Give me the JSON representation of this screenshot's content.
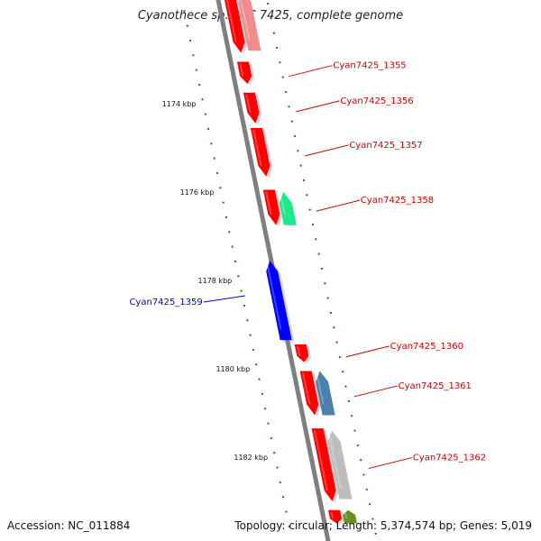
{
  "title": "Cyanothece sp. PCC 7425, complete genome",
  "footer": {
    "accession": "Accession: NC_011884",
    "summary": "Topology: circular; Length: 5,374,574 bp; Genes: 5,019"
  },
  "colors": {
    "forward_gene": "#ff0000",
    "reverse_gene": "#0000ff",
    "backbone": "#7f7f7f",
    "tick": "#1e7a1e",
    "label_forward": "#cc0000",
    "label_reverse": "#0000cc"
  },
  "scale_labels": [
    {
      "label": "1174 kbp",
      "kbp": 1174
    },
    {
      "label": "1176 kbp",
      "kbp": 1176
    },
    {
      "label": "1178 kbp",
      "kbp": 1178
    },
    {
      "label": "1180 kbp",
      "kbp": 1180
    },
    {
      "label": "1182 kbp",
      "kbp": 1182
    }
  ],
  "genes": [
    {
      "name": "",
      "strand": "reverse",
      "start": 1171.1,
      "end": 1171.2,
      "color": "#0000ff"
    },
    {
      "name": "",
      "strand": "forward",
      "start": 1171.45,
      "end": 1172.85,
      "color": "#ff0000"
    },
    {
      "name": "Cyan7425_1355",
      "strand": "forward",
      "start": 1173.05,
      "end": 1173.55,
      "color": "#ff0000"
    },
    {
      "name": "Cyan7425_1356",
      "strand": "forward",
      "start": 1173.75,
      "end": 1174.45,
      "color": "#ff0000"
    },
    {
      "name": "Cyan7425_1357",
      "strand": "forward",
      "start": 1174.55,
      "end": 1175.65,
      "color": "#ff0000"
    },
    {
      "name": "Cyan7425_1358",
      "strand": "forward",
      "start": 1175.95,
      "end": 1176.75,
      "color": "#ff0000"
    },
    {
      "name": "Cyan7425_1359",
      "strand": "reverse",
      "start": 1177.55,
      "end": 1179.35,
      "color": "#0000ff"
    },
    {
      "name": "Cyan7425_1360",
      "strand": "forward",
      "start": 1179.45,
      "end": 1179.85,
      "color": "#ff0000"
    },
    {
      "name": "Cyan7425_1361",
      "strand": "forward",
      "start": 1180.05,
      "end": 1181.05,
      "color": "#ff0000"
    },
    {
      "name": "Cyan7425_1362",
      "strand": "forward",
      "start": 1181.35,
      "end": 1183.0,
      "color": "#ff0000"
    },
    {
      "name": "",
      "strand": "forward",
      "start": 1183.2,
      "end": 1183.5,
      "color": "#ff0000"
    }
  ],
  "features": [
    {
      "strand": "reverse",
      "start": 1171.1,
      "end": 1171.15,
      "color": "#29a8e0"
    },
    {
      "strand": "forward",
      "start": 1171.45,
      "end": 1172.8,
      "color": "#f08c8c"
    },
    {
      "strand": "forward",
      "start": 1176.0,
      "end": 1176.75,
      "color": "#1ee88c"
    },
    {
      "strand": "forward",
      "start": 1180.05,
      "end": 1181.05,
      "color": "#4a7fb0"
    },
    {
      "strand": "forward",
      "start": 1181.4,
      "end": 1182.95,
      "color": "#bdbdbd"
    },
    {
      "strand": "forward",
      "start": 1183.2,
      "end": 1183.5,
      "color": "#6b8f23"
    }
  ]
}
